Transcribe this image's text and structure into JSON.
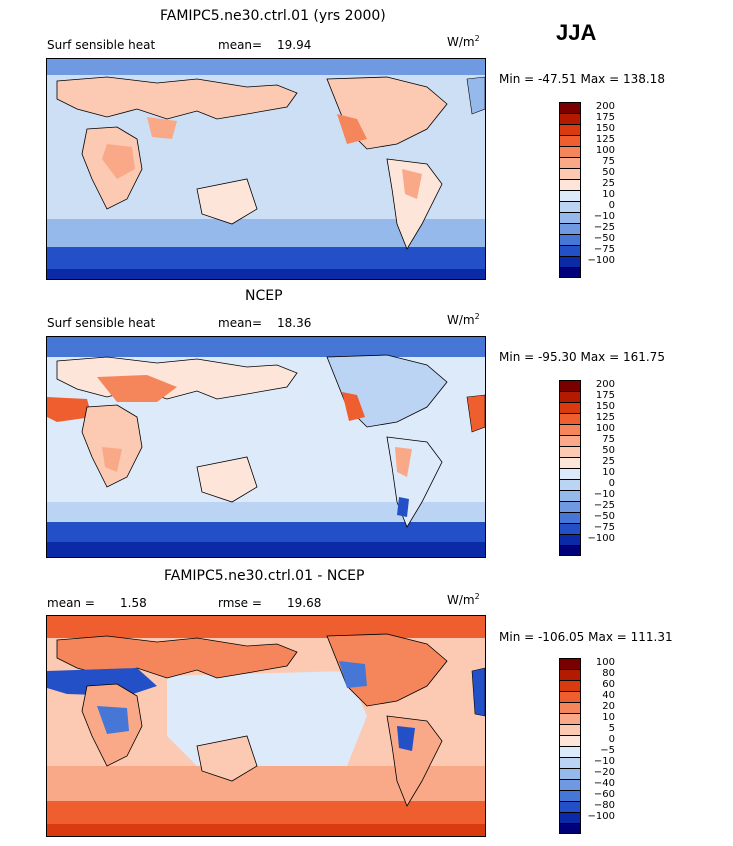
{
  "season": "JJA",
  "panels": [
    {
      "title": "FAMIPC5.ne30.ctrl.01 (yrs 2000)",
      "left_label": "Surf sensible heat",
      "mean_label": "mean=",
      "mean_value": "19.94",
      "units": "W/m",
      "units_exp": "2",
      "minmax": "Min = -47.51  Max = 138.18",
      "legend_labels": [
        "200",
        "175",
        "150",
        "125",
        "100",
        "75",
        "50",
        "25",
        "10",
        "0",
        "−10",
        "−25",
        "−50",
        "−75",
        "−100"
      ]
    },
    {
      "title": "NCEP",
      "left_label": "Surf sensible heat",
      "mean_label": "mean=",
      "mean_value": "18.36",
      "units": "W/m",
      "units_exp": "2",
      "minmax": "Min = -95.30  Max = 161.75",
      "legend_labels": [
        "200",
        "175",
        "150",
        "125",
        "100",
        "75",
        "50",
        "25",
        "10",
        "0",
        "−10",
        "−25",
        "−50",
        "−75",
        "−100"
      ]
    },
    {
      "title": "FAMIPC5.ne30.ctrl.01 - NCEP",
      "left_label": "mean =",
      "mean_value": "1.58",
      "rmse_label": "rmse =",
      "rmse_value": "19.68",
      "units": "W/m",
      "units_exp": "2",
      "minmax": "Min = -106.05  Max = 111.31",
      "legend_labels": [
        "100",
        "80",
        "60",
        "40",
        "20",
        "10",
        "5",
        "0",
        "−5",
        "−10",
        "−20",
        "−40",
        "−60",
        "−80",
        "−100"
      ]
    }
  ],
  "colors": {
    "scale": [
      "#7a0000",
      "#b31a00",
      "#d93a10",
      "#ee5e2f",
      "#f5865b",
      "#f9a987",
      "#fcc9b2",
      "#fde6d9",
      "#ddeaf9",
      "#bcd4f3",
      "#96b9ec",
      "#6f9ae2",
      "#4677d6",
      "#2350c6",
      "#0b2aa8",
      "#00007a"
    ]
  }
}
